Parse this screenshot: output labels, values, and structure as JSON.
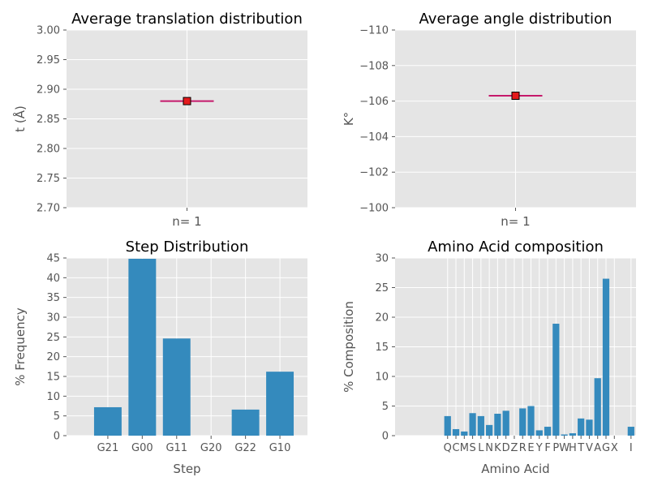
{
  "colors": {
    "panel_bg": "#e5e5e5",
    "grid": "#ffffff",
    "bar": "#348abd",
    "marker": "#e41a1c",
    "line": "#c5196b",
    "text": "#555555",
    "title": "#000000"
  },
  "chart_data": [
    {
      "type": "scatter",
      "title": "Average translation distribution",
      "xlabel": "n= 1",
      "ylabel": "t (Å)",
      "ylim": [
        2.7,
        3.0
      ],
      "yticks": [
        "2.70",
        "2.75",
        "2.80",
        "2.85",
        "2.90",
        "2.95",
        "3.00"
      ],
      "ytick_values": [
        2.7,
        2.75,
        2.8,
        2.85,
        2.9,
        2.95,
        3.0
      ],
      "y_inverted": false,
      "grid": true,
      "points": [
        {
          "x": 1,
          "y": 2.88
        }
      ],
      "marker": "square"
    },
    {
      "type": "scatter",
      "title": "Average angle distribution",
      "xlabel": "n= 1",
      "ylabel": "K°",
      "ylim": [
        -100,
        -110
      ],
      "yticks": [
        "−110",
        "−108",
        "−106",
        "−104",
        "−102",
        "−100"
      ],
      "ytick_values": [
        -110,
        -108,
        -106,
        -104,
        -102,
        -100
      ],
      "y_inverted": true,
      "grid": true,
      "points": [
        {
          "x": 1,
          "y": -106.3
        }
      ],
      "marker": "square"
    },
    {
      "type": "bar",
      "title": "Step Distribution",
      "xlabel": "Step",
      "ylabel": "% Frequency",
      "ylim": [
        0,
        45
      ],
      "yticks": [
        "0",
        "5",
        "10",
        "15",
        "20",
        "25",
        "30",
        "35",
        "40",
        "45"
      ],
      "ytick_values": [
        0,
        5,
        10,
        15,
        20,
        25,
        30,
        35,
        40,
        45
      ],
      "grid": true,
      "categories": [
        "G21",
        "G00",
        "G11",
        "G20",
        "G22",
        "G10"
      ],
      "values": [
        7.2,
        44.8,
        24.6,
        0,
        6.6,
        16.2
      ]
    },
    {
      "type": "bar",
      "title": "Amino Acid composition",
      "xlabel": "Amino Acid",
      "ylabel": "% Composition",
      "ylim": [
        0,
        30
      ],
      "yticks": [
        "0",
        "5",
        "10",
        "15",
        "20",
        "25",
        "30"
      ],
      "ytick_values": [
        0,
        5,
        10,
        15,
        20,
        25,
        30
      ],
      "grid": true,
      "categories": [
        "",
        "",
        "",
        "",
        "",
        "Q",
        "C",
        "M",
        "S",
        "L",
        "N",
        "K",
        "D",
        "Z",
        "R",
        "E",
        "Y",
        "F",
        "P",
        "W",
        "H",
        "T",
        "V",
        "A",
        "G",
        "X",
        "",
        "I"
      ],
      "values": [
        0,
        0,
        0,
        0,
        0,
        3.3,
        1.1,
        0.7,
        3.8,
        3.3,
        1.8,
        3.7,
        4.2,
        0,
        4.6,
        5.0,
        0.9,
        1.5,
        18.9,
        0.2,
        0.4,
        2.9,
        2.7,
        9.7,
        26.5,
        0,
        0,
        1.5
      ]
    }
  ]
}
